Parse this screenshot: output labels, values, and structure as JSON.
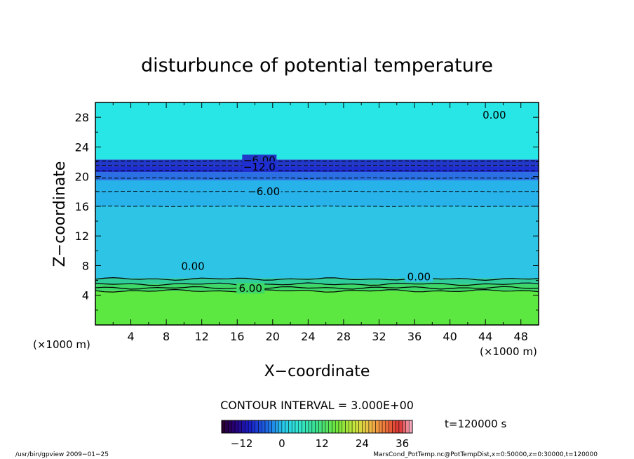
{
  "chart_data": {
    "type": "heatmap",
    "title": "disturbunce of potential temperature",
    "xlabel": "X−coordinate",
    "ylabel": "Z−coordinate",
    "x_unit_left": "(×1000 m)",
    "x_unit_right": "(×1000 m)",
    "xlim": [
      0,
      50
    ],
    "ylim": [
      0,
      30
    ],
    "x_ticks": [
      4,
      8,
      12,
      16,
      20,
      24,
      28,
      32,
      36,
      40,
      44,
      48
    ],
    "y_ticks": [
      4,
      8,
      12,
      16,
      20,
      24,
      28
    ],
    "contour_interval_text": "CONTOUR INTERVAL = 3.000E+00",
    "time_text": "t=120000 s",
    "colorbar": {
      "min": -18,
      "max": 39,
      "ticks": [
        -12,
        0,
        12,
        24,
        36
      ],
      "tick_labels": [
        "−12",
        "0",
        "12",
        "24",
        "36"
      ]
    },
    "contour_labels": [
      {
        "text": "0.00",
        "x": 45.0,
        "z": 28.3
      },
      {
        "text": "−6.00",
        "x": 18.5,
        "z": 22.2
      },
      {
        "text": "−12.0",
        "x": 18.5,
        "z": 21.3
      },
      {
        "text": "−6.00",
        "x": 19.0,
        "z": 18.0
      },
      {
        "text": "0.00",
        "x": 11.0,
        "z": 7.9
      },
      {
        "text": "0.00",
        "x": 36.5,
        "z": 6.5
      },
      {
        "text": "6.00",
        "x": 17.5,
        "z": 4.9
      }
    ],
    "layers": [
      {
        "z_from": 0,
        "z_to": 4.6,
        "value": 18,
        "color": "#5ce840"
      },
      {
        "z_from": 4.6,
        "z_to": 5.5,
        "value": 12,
        "color": "#3ed868"
      },
      {
        "z_from": 5.5,
        "z_to": 6.3,
        "value": 6,
        "color": "#30cc9a"
      },
      {
        "z_from": 6.3,
        "z_to": 16.0,
        "value": -1,
        "color": "#2ec4e6"
      },
      {
        "z_from": 16.0,
        "z_to": 19.5,
        "value": -3,
        "color": "#28b2ea"
      },
      {
        "z_from": 19.5,
        "z_to": 20.6,
        "value": -9,
        "color": "#2a70e4"
      },
      {
        "z_from": 20.6,
        "z_to": 21.4,
        "value": -15,
        "color": "#1f2ed0"
      },
      {
        "z_from": 21.4,
        "z_to": 22.3,
        "value": -18,
        "color": "#2238c8"
      },
      {
        "z_from": 22.3,
        "z_to": 30,
        "value": 0,
        "color": "#28e6e6"
      }
    ],
    "dashed_levels_z": [
      16.0,
      18.0,
      19.8,
      20.8,
      21.5,
      22.1
    ],
    "solid_levels_z": [
      4.6,
      5.0,
      5.5,
      6.2
    ]
  },
  "footer": {
    "left": "/usr/bin/gpview   2009−01−25",
    "right": "MarsCond_PotTemp.nc@PotTempDist,x=0:50000,z=0:30000,t=120000"
  }
}
